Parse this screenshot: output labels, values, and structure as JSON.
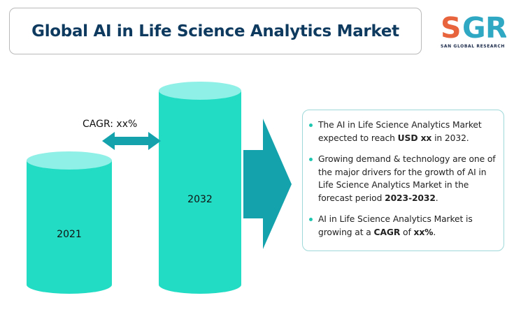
{
  "title": "Global AI in Life Science Analytics Market",
  "logo": {
    "letters": "SGR",
    "tagline": "SAN GLOBAL RESEARCH",
    "colors": {
      "S": "#e8643c",
      "G": "#2fa8c4",
      "R": "#2fa8c4"
    }
  },
  "chart_data": {
    "type": "bar",
    "categories": [
      "2021",
      "2032"
    ],
    "values": [
      null,
      null
    ],
    "annotation": "CAGR: xx%",
    "colors": {
      "body": "#22dcc4",
      "top": "#8ef0e6",
      "arrow": "#14a3ad"
    }
  },
  "info": {
    "points": [
      {
        "parts": [
          {
            "text": "The AI in Life Science Analytics Market expected to reach "
          },
          {
            "text": "USD xx",
            "bold": true
          },
          {
            "text": " in 2032."
          }
        ]
      },
      {
        "parts": [
          {
            "text": "Growing demand & technology are one of the major drivers for the growth of AI in Life Science Analytics Market in the forecast period "
          },
          {
            "text": "2023-2032",
            "bold": true
          },
          {
            "text": "."
          }
        ]
      },
      {
        "parts": [
          {
            "text": "AI in Life Science Analytics Market is growing at a "
          },
          {
            "text": "CAGR",
            "bold": true
          },
          {
            "text": " of "
          },
          {
            "text": "xx%",
            "bold": true
          },
          {
            "text": "."
          }
        ]
      }
    ]
  }
}
